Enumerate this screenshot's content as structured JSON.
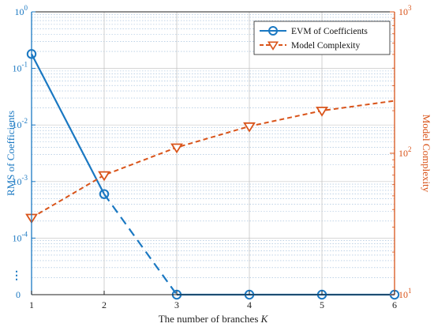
{
  "chart_data": {
    "type": "line",
    "xlabel": "The number of branches",
    "xlabel_var": "K",
    "ylabel_left": "RMS of Coefficients",
    "ylabel_right": "Model Complexity",
    "x_ticks": [
      "1",
      "2",
      "3",
      "4",
      "5",
      "6"
    ],
    "xlim": [
      1,
      6
    ],
    "y_left": {
      "scale": "log",
      "range": [
        1e-05,
        1
      ],
      "ticks": [
        {
          "base": "10",
          "exp": "0",
          "value": 1
        },
        {
          "base": "10",
          "exp": "-1",
          "value": 0.1
        },
        {
          "base": "10",
          "exp": "-2",
          "value": 0.01
        },
        {
          "base": "10",
          "exp": "-3",
          "value": 0.001
        },
        {
          "base": "10",
          "exp": "-4",
          "value": 0.0001
        }
      ],
      "bottom_label": "0",
      "break_marker": "⋮"
    },
    "y_right": {
      "scale": "log",
      "range": [
        10,
        1000
      ],
      "ticks": [
        {
          "base": "10",
          "exp": "1",
          "value": 10
        },
        {
          "base": "10",
          "exp": "2",
          "value": 100
        },
        {
          "base": "10",
          "exp": "3",
          "value": 1000
        }
      ]
    },
    "grid": true,
    "legend_placement": "top-right",
    "series": [
      {
        "name": "EVM of Coefficients",
        "axis": "left",
        "color": "#1a78c2",
        "marker": "circle",
        "x": [
          1,
          2,
          3,
          4,
          5,
          6
        ],
        "y": [
          0.18,
          0.0006,
          0,
          0,
          0,
          0
        ],
        "segments": [
          "solid",
          "dashed",
          "solid",
          "solid",
          "solid"
        ]
      },
      {
        "name": "Model Complexity",
        "axis": "right",
        "color": "#d9541a",
        "marker": "triangle-down",
        "x": [
          1,
          2,
          3,
          4,
          5,
          6
        ],
        "y": [
          35,
          70,
          110,
          155,
          200,
          235
        ],
        "markers": [
          true,
          true,
          true,
          true,
          true,
          false
        ],
        "line_style": "dashed"
      }
    ],
    "colors": {
      "left_axis": "#1a78c2",
      "right_axis": "#d9541a",
      "grid": "#7fa7cf"
    }
  }
}
